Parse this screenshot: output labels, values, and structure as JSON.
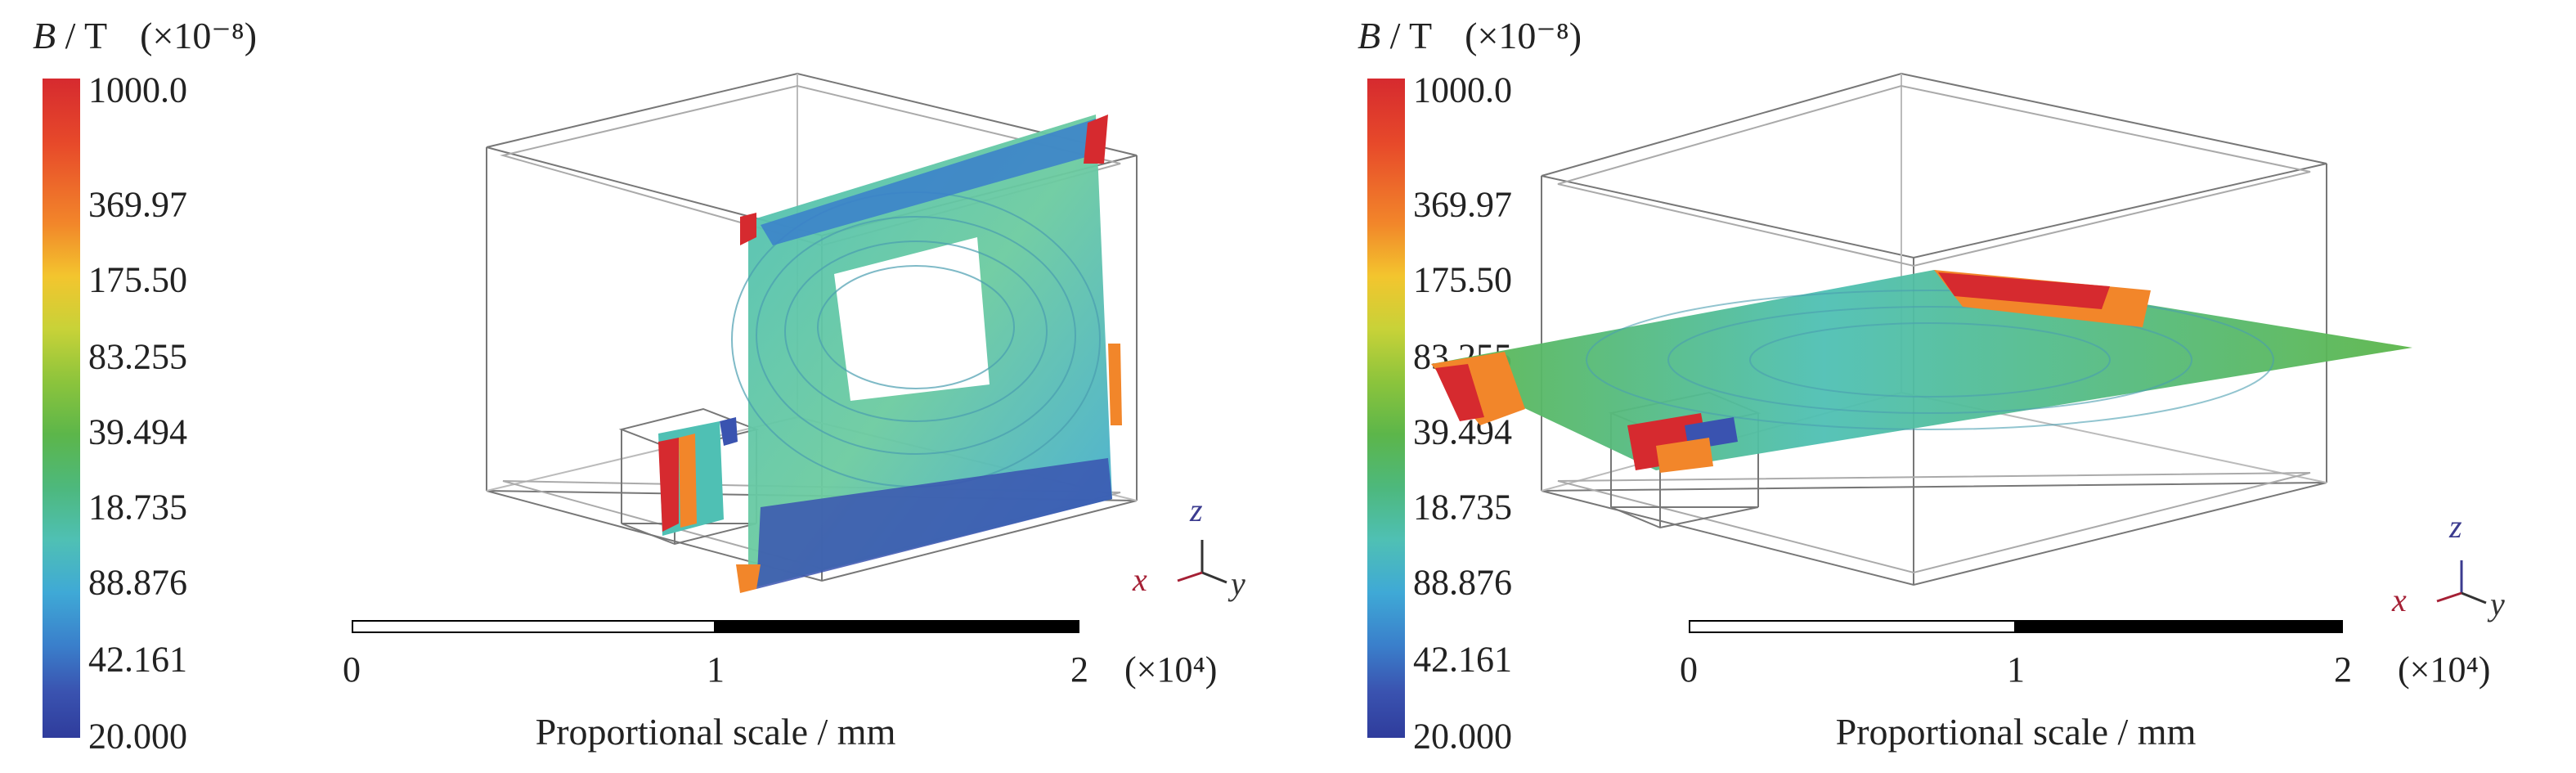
{
  "legend": {
    "symbol": "B",
    "unit": " / T",
    "multiplier": "(×10⁻⁸)",
    "ticks": [
      "1000.0",
      "369.97",
      "175.50",
      "83.255",
      "39.494",
      "18.735",
      "88.876",
      "42.161",
      "20.000"
    ]
  },
  "axes": {
    "z": "z",
    "x": "x",
    "y": "y"
  },
  "scale": {
    "ticks": [
      "0",
      "1",
      "2"
    ],
    "multiplier": "(×10⁴)",
    "caption": "Proportional scale / mm"
  },
  "colors": {
    "red": "#d62a2f",
    "orange": "#f2862a",
    "yellow": "#f3c52e",
    "green": "#5cb64a",
    "cyan": "#4fc0b4",
    "blue": "#3a7fcb",
    "navy": "#2f3c9c"
  }
}
